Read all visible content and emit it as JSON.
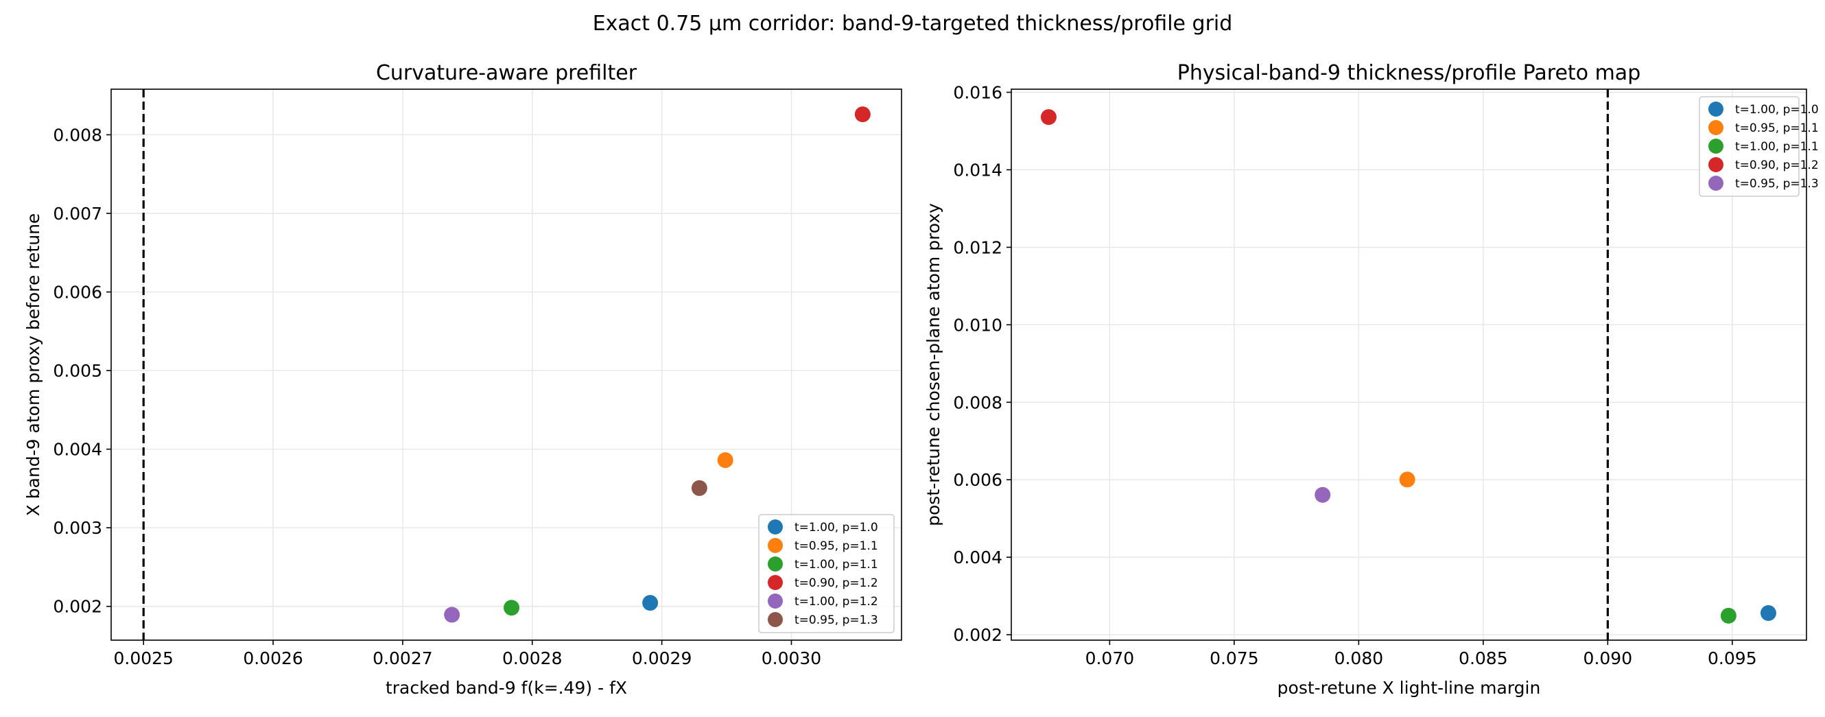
{
  "figure": {
    "suptitle": "Exact 0.75 µm corridor: band-9-targeted thickness/profile grid"
  },
  "chart_data": [
    {
      "type": "scatter",
      "title": "Curvature-aware prefilter",
      "xlabel": "tracked band-9 f(k=.49) - fX",
      "ylabel": "X band-9 atom proxy before retune",
      "xlim": [
        0.002475,
        0.003085
      ],
      "ylim": [
        0.00157,
        0.00858
      ],
      "xticks": [
        0.0025,
        0.0026,
        0.0027,
        0.0028,
        0.0029,
        0.003
      ],
      "xtick_labels": [
        "0.0025",
        "0.0026",
        "0.0027",
        "0.0028",
        "0.0029",
        "0.0030"
      ],
      "yticks": [
        0.002,
        0.003,
        0.004,
        0.005,
        0.006,
        0.007,
        0.008
      ],
      "ytick_labels": [
        "0.002",
        "0.003",
        "0.004",
        "0.005",
        "0.006",
        "0.007",
        "0.008"
      ],
      "grid": true,
      "legend_position": "lower-right",
      "reference_line": {
        "axis": "x",
        "value": 0.0025,
        "style": "dashed"
      },
      "series": [
        {
          "name": "t=1.00, p=1.0",
          "color": "#1f77b4",
          "x": [
            0.002891
          ],
          "y": [
            0.002045
          ]
        },
        {
          "name": "t=0.95, p=1.1",
          "color": "#ff7f0e",
          "x": [
            0.002949
          ],
          "y": [
            0.00386
          ]
        },
        {
          "name": "t=1.00, p=1.1",
          "color": "#2ca02c",
          "x": [
            0.002784
          ],
          "y": [
            0.001983
          ]
        },
        {
          "name": "t=0.90, p=1.2",
          "color": "#d62728",
          "x": [
            0.003055
          ],
          "y": [
            0.00826
          ]
        },
        {
          "name": "t=1.00, p=1.2",
          "color": "#9467bd",
          "x": [
            0.002738
          ],
          "y": [
            0.001893
          ]
        },
        {
          "name": "t=0.95, p=1.3",
          "color": "#8c564b",
          "x": [
            0.002929
          ],
          "y": [
            0.003505
          ]
        }
      ]
    },
    {
      "type": "scatter",
      "title": "Physical-band-9 thickness/profile Pareto map",
      "xlabel": "post-retune X light-line margin",
      "ylabel": "post-retune chosen-plane atom proxy",
      "xlim": [
        0.06605,
        0.09798
      ],
      "ylim": [
        0.00186,
        0.01608
      ],
      "xticks": [
        0.07,
        0.075,
        0.08,
        0.085,
        0.09,
        0.095
      ],
      "xtick_labels": [
        "0.070",
        "0.075",
        "0.080",
        "0.085",
        "0.090",
        "0.095"
      ],
      "yticks": [
        0.002,
        0.004,
        0.006,
        0.008,
        0.01,
        0.012,
        0.014,
        0.016
      ],
      "ytick_labels": [
        "0.002",
        "0.004",
        "0.006",
        "0.008",
        "0.010",
        "0.012",
        "0.014",
        "0.016"
      ],
      "grid": true,
      "legend_position": "upper-right",
      "reference_line": {
        "axis": "x",
        "value": 0.09,
        "style": "dashed"
      },
      "series": [
        {
          "name": "t=1.00, p=1.0",
          "color": "#1f77b4",
          "x": [
            0.09645
          ],
          "y": [
            0.00256
          ]
        },
        {
          "name": "t=0.95, p=1.1",
          "color": "#ff7f0e",
          "x": [
            0.08195
          ],
          "y": [
            0.006005
          ]
        },
        {
          "name": "t=1.00, p=1.1",
          "color": "#2ca02c",
          "x": [
            0.09485
          ],
          "y": [
            0.00249
          ]
        },
        {
          "name": "t=0.90, p=1.2",
          "color": "#d62728",
          "x": [
            0.06755
          ],
          "y": [
            0.01536
          ]
        },
        {
          "name": "t=0.95, p=1.3",
          "color": "#9467bd",
          "x": [
            0.07855
          ],
          "y": [
            0.00561
          ]
        }
      ]
    }
  ]
}
